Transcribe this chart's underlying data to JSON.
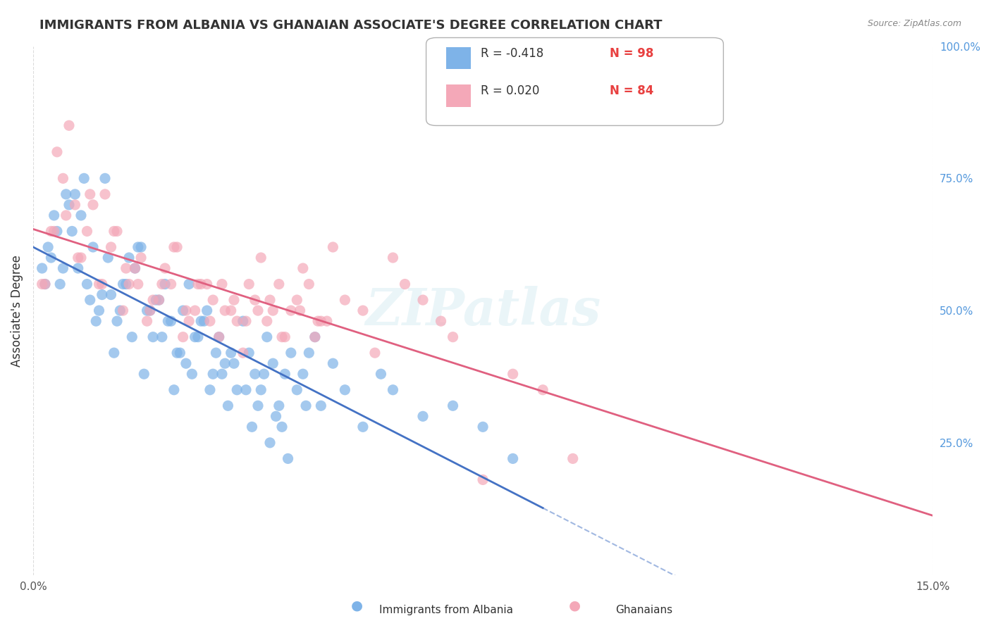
{
  "title": "IMMIGRANTS FROM ALBANIA VS GHANAIAN ASSOCIATE'S DEGREE CORRELATION CHART",
  "source_text": "Source: ZipAtlas.com",
  "xlabel": "",
  "ylabel": "Associate's Degree",
  "xlim": [
    0.0,
    15.0
  ],
  "ylim": [
    0.0,
    100.0
  ],
  "x_tick_labels": [
    "0.0%",
    "15.0%"
  ],
  "y_tick_labels_right": [
    "100.0%",
    "75.0%",
    "50.0%",
    "25.0%"
  ],
  "y_tick_positions_right": [
    100.0,
    75.0,
    50.0,
    25.0
  ],
  "albania_color": "#7EB3E8",
  "ghana_color": "#F4A8B8",
  "albania_line_color": "#4472C4",
  "ghana_line_color": "#E06080",
  "legend_r_albania": "R = -0.418",
  "legend_n_albania": "N = 98",
  "legend_r_ghana": "R = 0.020",
  "legend_n_ghana": "N = 84",
  "legend_r_color": "#4472C4",
  "legend_n_color": "#E84040",
  "watermark": "ZIPatlas",
  "background_color": "#FFFFFF",
  "grid_color": "#CCCCCC",
  "albania_scatter": {
    "x": [
      0.2,
      0.3,
      0.4,
      0.5,
      0.6,
      0.7,
      0.8,
      0.9,
      1.0,
      1.1,
      1.2,
      1.3,
      1.4,
      1.5,
      1.6,
      1.7,
      1.8,
      1.9,
      2.0,
      2.1,
      2.2,
      2.3,
      2.4,
      2.5,
      2.6,
      2.7,
      2.8,
      2.9,
      3.0,
      3.1,
      3.2,
      3.3,
      3.4,
      3.5,
      3.6,
      3.7,
      3.8,
      3.9,
      4.0,
      4.1,
      4.2,
      4.3,
      4.4,
      4.5,
      4.6,
      4.7,
      4.8,
      5.0,
      5.2,
      5.5,
      5.8,
      6.0,
      6.5,
      7.0,
      7.5,
      8.0,
      0.15,
      0.25,
      0.35,
      0.45,
      0.55,
      0.65,
      0.75,
      0.85,
      0.95,
      1.05,
      1.15,
      1.25,
      1.35,
      1.45,
      1.55,
      1.65,
      1.75,
      1.85,
      1.95,
      2.05,
      2.15,
      2.25,
      2.35,
      2.45,
      2.55,
      2.65,
      2.75,
      2.85,
      2.95,
      3.05,
      3.15,
      3.25,
      3.35,
      3.55,
      3.65,
      3.75,
      3.85,
      3.95,
      4.05,
      4.15,
      4.25,
      4.55
    ],
    "y": [
      55,
      60,
      65,
      58,
      70,
      72,
      68,
      55,
      62,
      50,
      75,
      53,
      48,
      55,
      60,
      58,
      62,
      50,
      45,
      52,
      55,
      48,
      42,
      50,
      55,
      45,
      48,
      50,
      38,
      45,
      40,
      42,
      35,
      48,
      42,
      38,
      35,
      45,
      40,
      32,
      38,
      42,
      35,
      38,
      42,
      45,
      32,
      40,
      35,
      28,
      38,
      35,
      30,
      32,
      28,
      22,
      58,
      62,
      68,
      55,
      72,
      65,
      58,
      75,
      52,
      48,
      53,
      60,
      42,
      50,
      55,
      45,
      62,
      38,
      50,
      52,
      45,
      48,
      35,
      42,
      40,
      38,
      45,
      48,
      35,
      42,
      38,
      32,
      40,
      35,
      28,
      32,
      38,
      25,
      30,
      28,
      22,
      32
    ]
  },
  "ghana_scatter": {
    "x": [
      0.2,
      0.4,
      0.6,
      0.8,
      1.0,
      1.2,
      1.4,
      1.6,
      1.8,
      2.0,
      2.2,
      2.4,
      2.6,
      2.8,
      3.0,
      3.2,
      3.4,
      3.6,
      3.8,
      4.0,
      4.2,
      4.4,
      4.6,
      4.8,
      5.0,
      5.5,
      6.0,
      6.5,
      7.0,
      8.0,
      9.0,
      0.3,
      0.5,
      0.7,
      0.9,
      1.1,
      1.3,
      1.5,
      1.7,
      1.9,
      2.1,
      2.3,
      2.5,
      2.7,
      2.9,
      3.1,
      3.3,
      3.5,
      3.7,
      3.9,
      4.1,
      4.3,
      4.5,
      4.7,
      4.9,
      5.2,
      5.7,
      6.2,
      6.8,
      7.5,
      8.5,
      0.15,
      0.35,
      0.55,
      0.75,
      0.95,
      1.15,
      1.35,
      1.55,
      1.75,
      1.95,
      2.15,
      2.35,
      2.55,
      2.75,
      2.95,
      3.15,
      3.35,
      3.55,
      3.75,
      3.95,
      4.15,
      4.45,
      4.75
    ],
    "y": [
      55,
      80,
      85,
      60,
      70,
      72,
      65,
      55,
      60,
      52,
      58,
      62,
      48,
      55,
      52,
      50,
      48,
      55,
      60,
      50,
      45,
      52,
      55,
      48,
      62,
      50,
      60,
      52,
      45,
      38,
      22,
      65,
      75,
      70,
      65,
      55,
      62,
      50,
      58,
      48,
      52,
      55,
      45,
      50,
      55,
      45,
      50,
      42,
      52,
      48,
      55,
      50,
      58,
      45,
      48,
      52,
      42,
      55,
      48,
      18,
      35,
      55,
      65,
      68,
      60,
      72,
      55,
      65,
      58,
      55,
      50,
      55,
      62,
      50,
      55,
      48,
      55,
      52,
      48,
      50,
      52,
      45,
      50,
      48
    ]
  },
  "albania_trend": {
    "x_start": 0.0,
    "x_end": 8.5,
    "x_dash_start": 8.5,
    "x_dash_end": 15.0
  },
  "ghana_trend": {
    "x_start": 0.0,
    "x_end": 15.0
  }
}
